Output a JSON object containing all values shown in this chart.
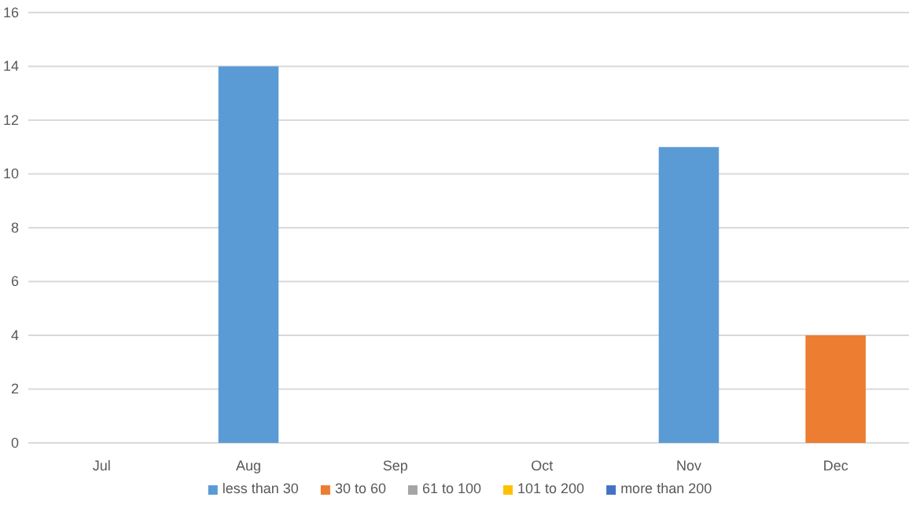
{
  "chart_data": {
    "type": "bar",
    "stacked": true,
    "categories": [
      "Jul",
      "Aug",
      "Sep",
      "Oct",
      "Nov",
      "Dec"
    ],
    "series": [
      {
        "name": "less than 30",
        "color": "#5b9bd5",
        "values": [
          0,
          14,
          0,
          0,
          11,
          0
        ]
      },
      {
        "name": "30 to 60",
        "color": "#ed7d31",
        "values": [
          0,
          0,
          0,
          0,
          0,
          4
        ]
      },
      {
        "name": "61 to 100",
        "color": "#a5a5a5",
        "values": [
          0,
          0,
          0,
          0,
          0,
          0
        ]
      },
      {
        "name": "101 to 200",
        "color": "#ffc000",
        "values": [
          0,
          0,
          0,
          0,
          0,
          0
        ]
      },
      {
        "name": "more than 200",
        "color": "#4472c4",
        "values": [
          0,
          0,
          0,
          0,
          0,
          0
        ]
      }
    ],
    "ylim": [
      0,
      16
    ],
    "yticks": [
      0,
      2,
      4,
      6,
      8,
      10,
      12,
      14,
      16
    ],
    "grid": "y",
    "legend": "bottom"
  }
}
